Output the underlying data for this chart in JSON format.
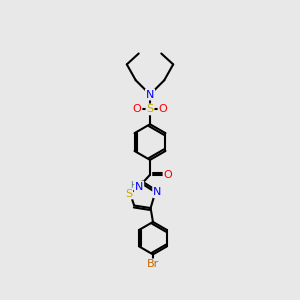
{
  "bg_color": "#e8e8e8",
  "bond_color": "#000000",
  "bond_width": 1.5,
  "atom_colors": {
    "N": "#0000ff",
    "O": "#ff0000",
    "S_sulfonyl": "#ccaa00",
    "S_thiazole": "#ccaa00",
    "Br": "#cc6600",
    "H": "#557777",
    "C": "#000000"
  }
}
